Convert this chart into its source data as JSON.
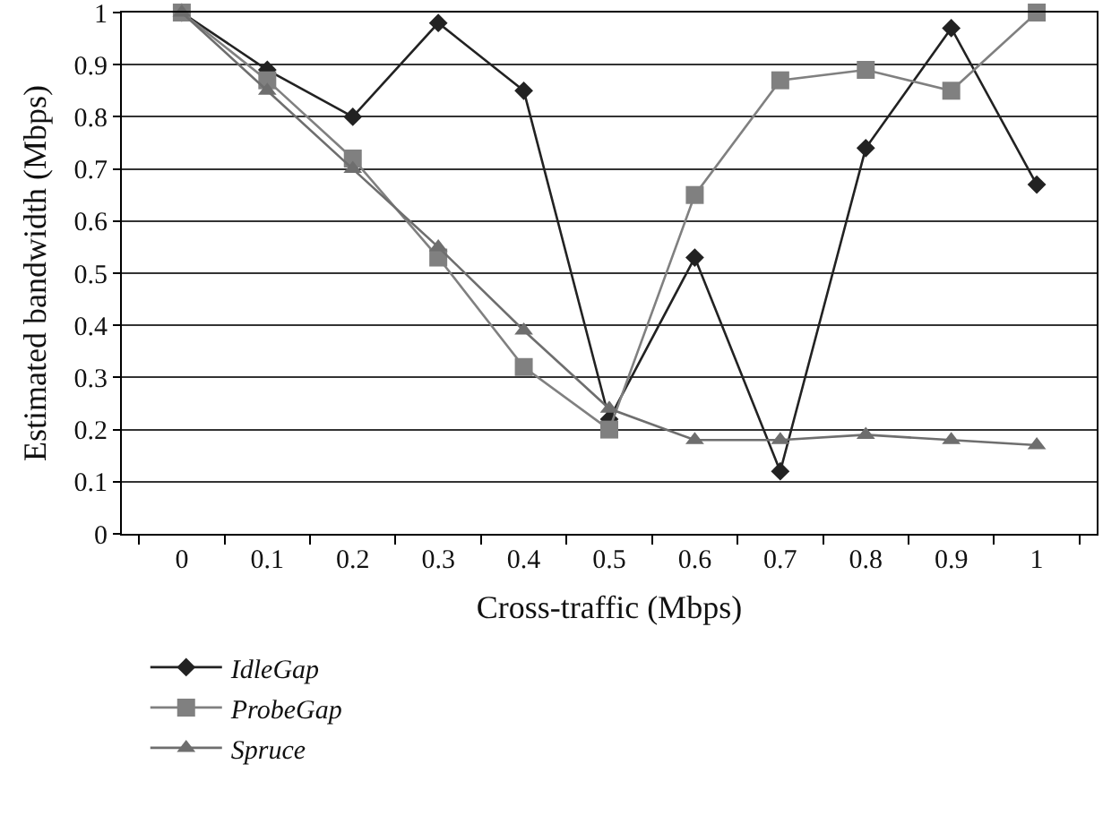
{
  "chart_data": {
    "type": "line",
    "xlabel": "Cross-traffic (Mbps)",
    "ylabel": "Estimated bandwidth (Mbps)",
    "categories": [
      "0",
      "0.1",
      "0.2",
      "0.3",
      "0.4",
      "0.5",
      "0.6",
      "0.7",
      "0.8",
      "0.9",
      "1"
    ],
    "series": [
      {
        "name": "IdleGap",
        "color": "#222222",
        "marker": "diamond",
        "values": [
          1,
          0.89,
          0.8,
          0.98,
          0.85,
          0.22,
          0.53,
          0.12,
          0.74,
          0.97,
          0.67
        ]
      },
      {
        "name": "ProbeGap",
        "color": "#808080",
        "marker": "square",
        "values": [
          1,
          0.87,
          0.72,
          0.53,
          0.32,
          0.2,
          0.65,
          0.87,
          0.89,
          0.85,
          1
        ]
      },
      {
        "name": "Spruce",
        "color": "#6e6e6e",
        "marker": "triangle",
        "values": [
          1,
          0.85,
          0.7,
          0.55,
          0.39,
          0.24,
          0.18,
          0.18,
          0.19,
          0.18,
          0.17
        ]
      }
    ],
    "ylim": [
      0,
      1
    ],
    "yticks": [
      0,
      0.1,
      0.2,
      0.3,
      0.4,
      0.5,
      0.6,
      0.7,
      0.8,
      0.9,
      1
    ],
    "grid": "y",
    "legend": "bottom left",
    "line_style": "solid"
  }
}
